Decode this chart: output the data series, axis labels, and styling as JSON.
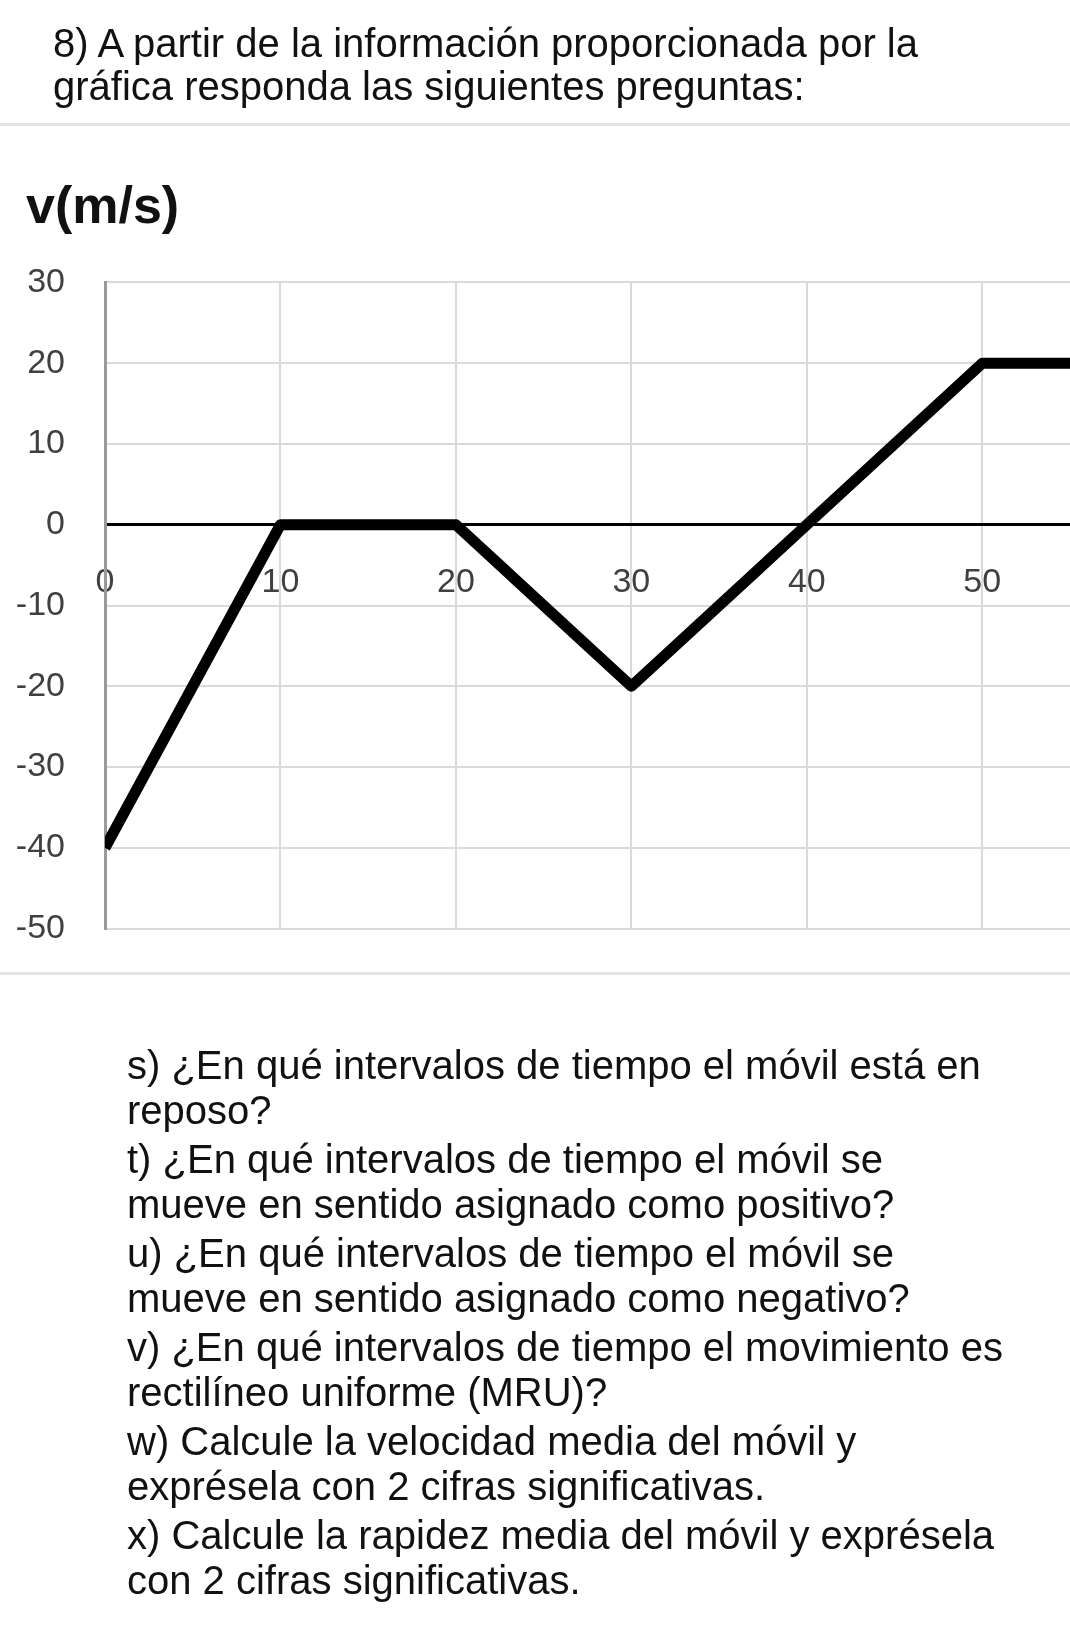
{
  "chart_data": {
    "type": "line",
    "title": "8) A partir de la información proporcionada por la gráfica responda las siguientes preguntas:",
    "ylabel": "v(m/s)",
    "x": [
      0,
      10,
      20,
      30,
      40,
      50,
      55
    ],
    "values": [
      -40,
      0,
      0,
      -20,
      0,
      20,
      20
    ],
    "color": "#000000",
    "xlim": [
      0,
      55
    ],
    "ylim": [
      -50,
      30
    ],
    "xticks": [
      0,
      10,
      20,
      30,
      40,
      50
    ],
    "yticks": [
      -50,
      -40,
      -30,
      -20,
      -10,
      0,
      10,
      20,
      30
    ],
    "grid": true,
    "line_style": "solid",
    "annotations": [
      "s) ¿En qué intervalos de tiempo el móvil está en reposo?",
      "t) ¿En qué intervalos de tiempo el móvil se mueve en sentido asignado como positivo?",
      "u) ¿En qué intervalos de tiempo el móvil se mueve en sentido asignado como negativo?",
      "v) ¿En qué intervalos de tiempo el movimiento es rectilíneo uniforme (MRU)?",
      "w) Calcule la velocidad media del móvil y exprésela con 2 cifras significativas.",
      "x) Calcule la rapidez media del móvil y exprésela con 2 cifras significativas."
    ]
  }
}
